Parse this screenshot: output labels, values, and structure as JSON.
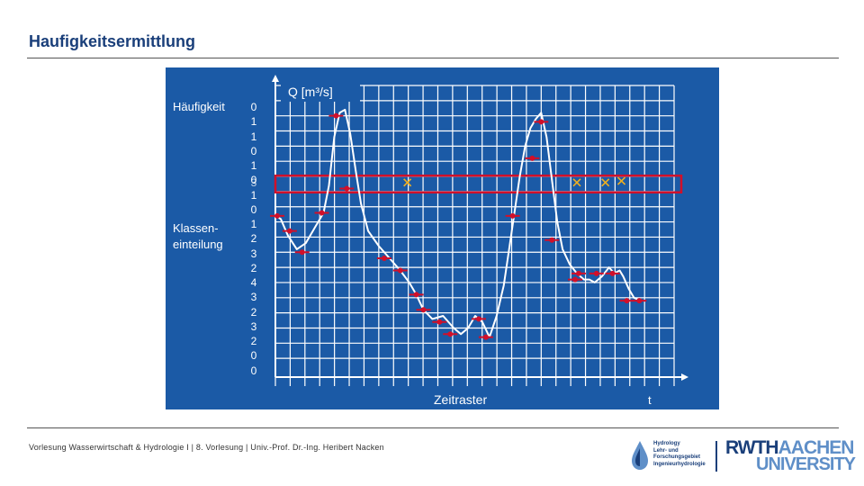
{
  "title": "Haufigkeitsermittlung",
  "labels": {
    "haeufigkeit": "Häufigkeit",
    "klassen_line1": "Klassen-",
    "klassen_line2": "einteilung"
  },
  "counts": [
    "0",
    "1",
    "1",
    "0",
    "1",
    "0",
    "1",
    "0",
    "1",
    "2",
    "3",
    "2",
    "4",
    "3",
    "2",
    "3",
    "2",
    "0",
    "0"
  ],
  "overlap_digit": "3",
  "chart_data": {
    "type": "line",
    "title": "",
    "ylabel": "Q [m³/s]",
    "xlabel": "Zeitraster",
    "x_axis_symbol": "t",
    "highlighted_class": "4",
    "x": [
      0,
      1,
      2,
      3,
      4,
      5,
      6,
      7,
      8,
      9,
      10,
      11,
      12,
      13,
      14,
      15,
      16,
      17,
      18,
      19,
      20,
      21,
      22,
      23,
      24,
      25,
      26,
      27,
      28,
      29,
      30,
      31,
      32,
      33,
      34,
      35,
      36,
      37,
      38,
      39,
      40,
      41,
      42,
      43,
      44,
      45,
      46,
      47,
      48,
      49,
      50,
      51,
      52,
      53,
      54,
      55,
      56,
      57,
      58,
      59,
      60,
      61,
      62,
      63,
      64,
      65,
      66,
      67,
      68,
      69,
      70,
      71,
      72,
      73,
      74,
      75,
      76,
      77,
      78,
      79,
      80,
      81,
      82,
      83,
      84,
      85,
      86,
      87,
      88,
      89,
      90,
      91,
      92,
      93,
      94,
      95,
      96,
      97,
      98,
      99,
      100,
      101,
      102,
      103,
      104,
      105,
      106,
      107,
      108,
      109,
      110,
      111,
      112,
      113,
      114,
      115,
      116,
      117,
      118,
      119,
      120,
      121,
      122,
      123,
      124,
      125,
      126,
      127,
      128,
      129,
      130,
      131,
      132,
      133,
      134,
      135,
      136,
      137,
      138,
      139,
      140,
      141,
      142,
      143,
      144,
      145,
      146,
      147,
      148,
      149,
      150,
      151,
      152,
      153,
      154,
      155,
      156,
      157,
      158,
      159,
      160,
      161,
      162,
      163,
      164,
      165,
      166,
      167,
      168,
      169,
      170,
      171,
      172,
      173,
      174,
      175,
      176,
      177,
      178,
      179,
      180,
      181,
      182,
      183,
      184,
      185,
      186,
      187,
      188,
      189,
      190,
      191,
      192,
      193,
      194,
      195,
      196,
      197,
      198,
      199,
      200,
      201,
      202,
      203,
      204,
      205,
      206,
      207,
      208,
      209,
      210,
      211,
      212,
      213,
      214,
      215,
      216,
      217,
      218,
      219,
      220,
      221,
      222,
      223,
      224,
      225,
      226,
      227,
      228,
      229,
      230,
      231,
      232,
      233,
      234,
      235,
      236,
      237,
      238,
      239,
      240,
      241,
      242,
      243,
      244,
      245,
      246,
      247,
      248,
      249,
      250,
      251,
      252,
      253,
      254,
      255,
      256,
      257,
      258,
      259,
      260,
      261,
      262,
      263,
      264,
      265,
      266,
      267,
      268,
      269,
      270,
      271,
      272,
      273,
      274,
      275,
      276,
      277,
      278,
      279,
      280,
      281,
      282,
      283,
      284,
      285,
      286,
      287,
      288,
      289,
      290,
      291,
      292,
      293,
      294,
      295,
      296,
      297,
      298,
      299,
      300,
      301,
      302,
      303,
      304,
      305,
      306,
      307,
      308,
      309,
      310,
      311,
      312,
      313,
      314,
      315,
      316,
      317,
      318,
      319,
      320,
      321,
      322,
      323,
      324,
      325,
      326,
      327,
      328,
      329,
      330,
      331,
      332,
      333,
      334,
      335,
      336,
      337,
      338,
      339,
      340,
      341,
      342,
      343,
      344,
      345,
      346,
      347,
      348,
      349,
      350,
      351,
      352,
      353,
      354,
      355,
      356,
      357,
      358,
      359,
      360,
      361,
      362,
      363,
      364,
      365,
      366,
      367,
      368,
      369,
      370,
      371,
      372,
      373,
      374,
      375,
      376,
      377,
      378,
      379,
      380,
      381,
      382,
      383,
      384,
      385,
      386,
      387,
      388,
      389,
      390,
      391,
      392,
      393,
      394,
      395,
      396,
      397,
      398,
      399,
      400,
      401,
      402,
      403,
      404,
      405,
      406,
      407,
      408,
      409,
      410,
      411,
      412,
      413,
      414,
      415,
      416,
      417,
      418,
      419,
      420,
      421,
      422,
      423,
      424,
      425,
      426,
      427,
      428,
      429,
      430,
      431,
      432,
      433,
      434,
      435,
      436,
      437,
      438,
      439,
      440,
      441,
      442,
      443,
      444,
      445,
      446,
      447
    ],
    "curve": [
      [
        0,
        10.4
      ],
      [
        6,
        10.2
      ],
      [
        14,
        9.1
      ],
      [
        24,
        8.2
      ],
      [
        34,
        8.6
      ],
      [
        44,
        9.6
      ],
      [
        54,
        10.6
      ],
      [
        60,
        12.4
      ],
      [
        66,
        15.6
      ],
      [
        72,
        17.2
      ],
      [
        78,
        17.4
      ],
      [
        84,
        15.8
      ],
      [
        90,
        13.4
      ],
      [
        96,
        11.2
      ],
      [
        104,
        9.4
      ],
      [
        116,
        8.4
      ],
      [
        128,
        7.6
      ],
      [
        140,
        6.8
      ],
      [
        150,
        6.0
      ],
      [
        158,
        5.2
      ],
      [
        166,
        4.2
      ],
      [
        176,
        3.6
      ],
      [
        188,
        3.8
      ],
      [
        200,
        3.0
      ],
      [
        208,
        2.6
      ],
      [
        216,
        3.0
      ],
      [
        224,
        3.8
      ],
      [
        232,
        3.4
      ],
      [
        240,
        2.4
      ],
      [
        248,
        3.8
      ],
      [
        256,
        5.8
      ],
      [
        262,
        8.2
      ],
      [
        268,
        10.6
      ],
      [
        274,
        13.0
      ],
      [
        280,
        15.0
      ],
      [
        286,
        16.2
      ],
      [
        292,
        16.8
      ],
      [
        298,
        17.2
      ],
      [
        304,
        15.6
      ],
      [
        310,
        12.8
      ],
      [
        316,
        10.0
      ],
      [
        322,
        8.2
      ],
      [
        330,
        7.2
      ],
      [
        338,
        6.6
      ],
      [
        346,
        6.2
      ],
      [
        352,
        6.2
      ],
      [
        358,
        6.0
      ],
      [
        366,
        6.4
      ],
      [
        374,
        7.0
      ],
      [
        380,
        6.6
      ],
      [
        386,
        6.8
      ],
      [
        390,
        6.4
      ],
      [
        396,
        5.6
      ],
      [
        402,
        5.0
      ],
      [
        410,
        4.8
      ]
    ],
    "samples": [
      [
        2,
        10.4
      ],
      [
        16,
        9.4
      ],
      [
        30,
        8.0
      ],
      [
        52,
        10.6
      ],
      [
        68,
        17.0
      ],
      [
        80,
        12.2
      ],
      [
        122,
        7.6
      ],
      [
        140,
        6.8
      ],
      [
        158,
        5.2
      ],
      [
        166,
        4.2
      ],
      [
        184,
        3.4
      ],
      [
        196,
        2.6
      ],
      [
        228,
        3.6
      ],
      [
        236,
        2.4
      ],
      [
        266,
        10.4
      ],
      [
        288,
        14.2
      ],
      [
        298,
        16.6
      ],
      [
        310,
        8.8
      ],
      [
        336,
        6.2
      ],
      [
        340,
        6.6
      ],
      [
        360,
        6.6
      ],
      [
        378,
        6.6
      ],
      [
        394,
        4.8
      ],
      [
        408,
        4.8
      ]
    ],
    "class_lines": [
      1,
      2,
      3,
      4,
      5,
      6,
      7,
      8,
      9,
      10,
      11,
      12,
      13,
      14,
      15,
      16,
      17,
      18,
      19
    ],
    "class_height": 1,
    "ylim": [
      0,
      19
    ],
    "xlim": [
      0,
      447
    ]
  },
  "footer": {
    "text": "Vorlesung Wasserwirtschaft & Hydrologie I | 8. Vorlesung | Univ.-Prof. Dr.-Ing. Heribert Nacken",
    "hydro_lines": [
      "Hydrology",
      "Lehr- und",
      "Forschungsgebiet",
      "Ingenieurhydrologie"
    ],
    "rwth_dark": "RWTH",
    "rwth_light": "AACHEN",
    "university": "UNIVERSITY"
  },
  "colors": {
    "panel": "#1b5aa6",
    "grid": "#ffffff",
    "curve": "#ffffff",
    "marker": "#d0102a",
    "highlight": "#d0102a",
    "cross": "#f0b020",
    "brand": "#1a3f7a"
  }
}
